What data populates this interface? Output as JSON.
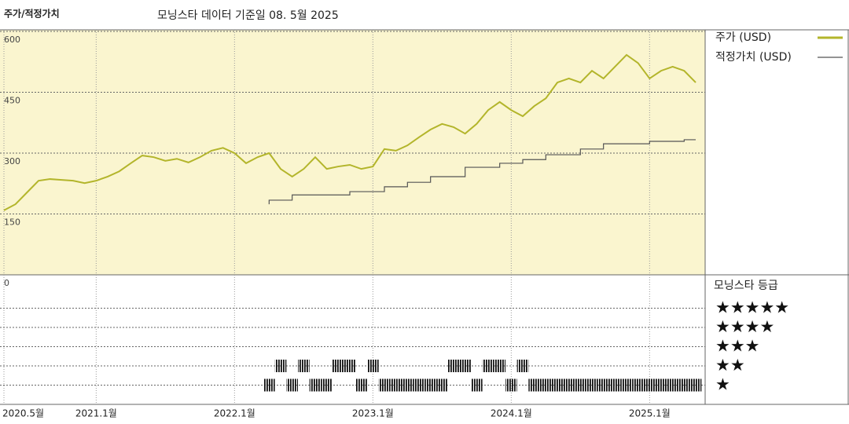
{
  "chart_data": [
    {
      "type": "line",
      "title": "주가/적정가치",
      "subtitle": "모닝스타 데이터 기준일 08. 5월 2025",
      "x": [
        "2020-05",
        "2020-06",
        "2020-07",
        "2020-08",
        "2020-09",
        "2020-10",
        "2020-11",
        "2020-12",
        "2021-01",
        "2021-02",
        "2021-03",
        "2021-04",
        "2021-05",
        "2021-06",
        "2021-07",
        "2021-08",
        "2021-09",
        "2021-10",
        "2021-11",
        "2021-12",
        "2022-01",
        "2022-02",
        "2022-03",
        "2022-04",
        "2022-05",
        "2022-06",
        "2022-07",
        "2022-08",
        "2022-09",
        "2022-10",
        "2022-11",
        "2022-12",
        "2023-01",
        "2023-02",
        "2023-03",
        "2023-04",
        "2023-05",
        "2023-06",
        "2023-07",
        "2023-08",
        "2023-09",
        "2023-10",
        "2023-11",
        "2023-12",
        "2024-01",
        "2024-02",
        "2024-03",
        "2024-04",
        "2024-05",
        "2024-06",
        "2024-07",
        "2024-08",
        "2024-09",
        "2024-10",
        "2024-11",
        "2024-12",
        "2025-01",
        "2025-02",
        "2025-03",
        "2025-04",
        "2025-05"
      ],
      "series": [
        {
          "name": "주가 (USD)",
          "color": "#b3b52b",
          "values": [
            159,
            174,
            203,
            232,
            236,
            234,
            232,
            226,
            232,
            242,
            255,
            275,
            294,
            290,
            281,
            286,
            277,
            290,
            306,
            313,
            300,
            275,
            290,
            300,
            261,
            242,
            261,
            290,
            261,
            267,
            271,
            261,
            267,
            310,
            306,
            319,
            339,
            358,
            372,
            364,
            348,
            372,
            406,
            426,
            406,
            391,
            416,
            435,
            474,
            484,
            474,
            503,
            484,
            513,
            542,
            522,
            484,
            503,
            513,
            503,
            474
          ]
        },
        {
          "name": "적정가치 (USD)",
          "color": "#555555",
          "step": true,
          "values": [
            null,
            null,
            null,
            null,
            null,
            null,
            null,
            null,
            null,
            null,
            null,
            null,
            null,
            null,
            null,
            null,
            null,
            null,
            null,
            null,
            null,
            null,
            null,
            174,
            184,
            184,
            197,
            197,
            197,
            197,
            197,
            205,
            205,
            205,
            217,
            217,
            228,
            228,
            242,
            242,
            242,
            265,
            265,
            265,
            275,
            275,
            284,
            284,
            296,
            296,
            296,
            310,
            310,
            323,
            323,
            323,
            323,
            329,
            329,
            329,
            333
          ]
        }
      ],
      "ylim": [
        0,
        600
      ],
      "yticks": [
        0,
        150,
        300,
        450,
        600
      ],
      "xticks": [
        {
          "value": "2020-05",
          "label": "2020.5월"
        },
        {
          "value": "2021-01",
          "label": "2021.1월"
        },
        {
          "value": "2022-01",
          "label": "2022.1월"
        },
        {
          "value": "2023-01",
          "label": "2023.1월"
        },
        {
          "value": "2024-01",
          "label": "2024.1월"
        },
        {
          "value": "2025-01",
          "label": "2025.1월"
        }
      ],
      "grid": true
    },
    {
      "type": "rating",
      "title": "모닝스타 등급",
      "color": "#111111",
      "x": [
        "2022-04",
        "2022-05",
        "2022-06",
        "2022-07",
        "2022-08",
        "2022-09",
        "2022-10",
        "2022-11",
        "2022-12",
        "2023-01",
        "2023-02",
        "2023-03",
        "2023-04",
        "2023-05",
        "2023-06",
        "2023-07",
        "2023-08",
        "2023-09",
        "2023-10",
        "2023-11",
        "2023-12",
        "2024-01",
        "2024-02",
        "2024-03",
        "2024-04",
        "2024-05",
        "2024-06",
        "2024-07",
        "2024-08",
        "2024-09",
        "2024-10",
        "2024-11",
        "2024-12",
        "2025-01",
        "2025-02",
        "2025-03",
        "2025-04",
        "2025-05"
      ],
      "values": [
        1,
        2,
        1,
        2,
        1,
        1,
        2,
        2,
        1,
        2,
        1,
        1,
        1,
        1,
        1,
        1,
        2,
        2,
        1,
        2,
        2,
        1,
        2,
        1,
        1,
        1,
        1,
        1,
        1,
        1,
        1,
        1,
        1,
        1,
        1,
        1,
        1,
        1
      ],
      "ylim": [
        0,
        6
      ],
      "yticks": [
        {
          "value": 5,
          "label": "★★★★★"
        },
        {
          "value": 4,
          "label": "★★★★"
        },
        {
          "value": 3,
          "label": "★★★"
        },
        {
          "value": 2,
          "label": "★★"
        },
        {
          "value": 1,
          "label": "★"
        }
      ]
    }
  ]
}
